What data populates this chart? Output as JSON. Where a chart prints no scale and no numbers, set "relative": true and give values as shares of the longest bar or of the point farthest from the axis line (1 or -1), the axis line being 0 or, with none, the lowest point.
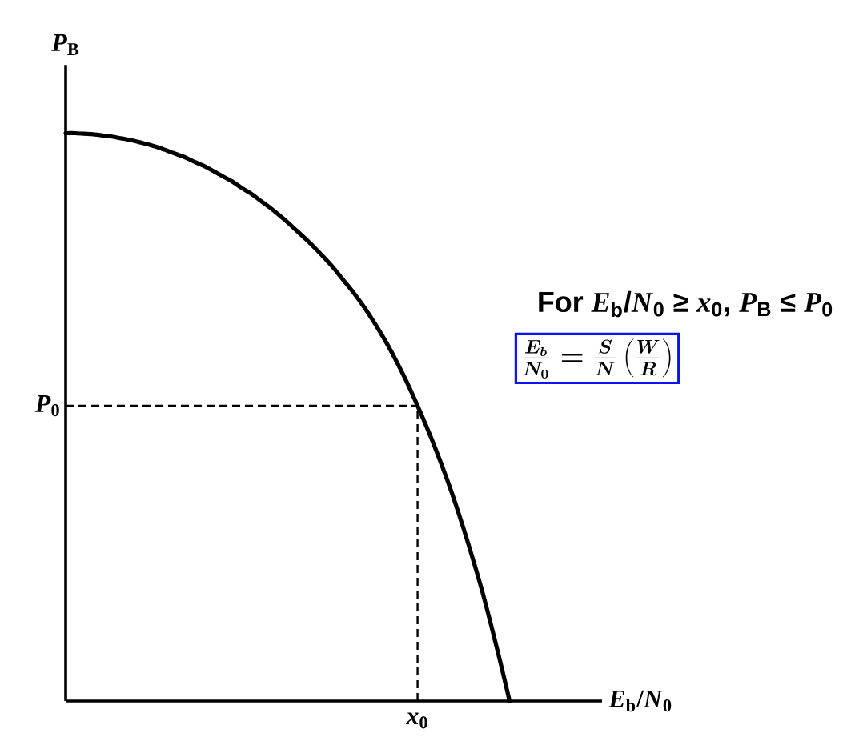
{
  "chart_data": {
    "type": "line",
    "relative": true,
    "xlabel": "*E*$_{b}$/*N*$_{0}$",
    "ylabel": "*P*$_{B}$",
    "categories": [
      null,
      null,
      null,
      null,
      null,
      null,
      null,
      null,
      null,
      null,
      null,
      null,
      null,
      null,
      null,
      null,
      null,
      null,
      null,
      null,
      null,
      null,
      null,
      null,
      null,
      null,
      null,
      null,
      null,
      null,
      null,
      null,
      null,
      null,
      null,
      null,
      null,
      null,
      null,
      null,
      null,
      null,
      null,
      null,
      null,
      null,
      null,
      null,
      null,
      null,
      null,
      null,
      null,
      null,
      null,
      null,
      null,
      null,
      null
    ],
    "values": [
      1.0,
      1.0,
      0.999,
      0.998,
      0.996,
      0.994,
      0.991,
      0.988,
      0.984,
      0.98,
      0.975,
      0.969,
      0.963,
      0.957,
      0.949,
      0.942,
      0.933,
      0.924,
      0.915,
      0.904,
      0.894,
      0.882,
      0.87,
      0.857,
      0.843,
      0.828,
      0.813,
      0.797,
      0.78,
      0.762,
      0.742,
      0.722,
      0.7,
      0.676,
      0.65,
      0.622,
      0.591,
      0.558,
      0.522,
      0.484,
      0.444,
      0.401,
      0.355,
      0.305,
      0.252,
      0.196,
      0.134,
      0.069,
      0,
      null,
      null,
      null,
      null,
      null,
      null,
      null,
      null,
      null,
      null
    ],
    "color": "#000000",
    "line_style": "solid",
    "ref_lines": [
      {
        "axis": "y",
        "value": 0.52,
        "label": "*P*$_{0}$",
        "line_style": "dashed"
      }
    ],
    "annotations": [
      "For *E*$_{b}$/*N*$_{0}$ ≥ *x*$_{0}$, *P*$_{B}$ ≤ *P*$_{0}$",
      "\\frac{E_b}{N_0} = \\frac{S}{N}\\left(\\frac{W}{R}\\right)",
      "*x*$_{0}$"
    ]
  }
}
